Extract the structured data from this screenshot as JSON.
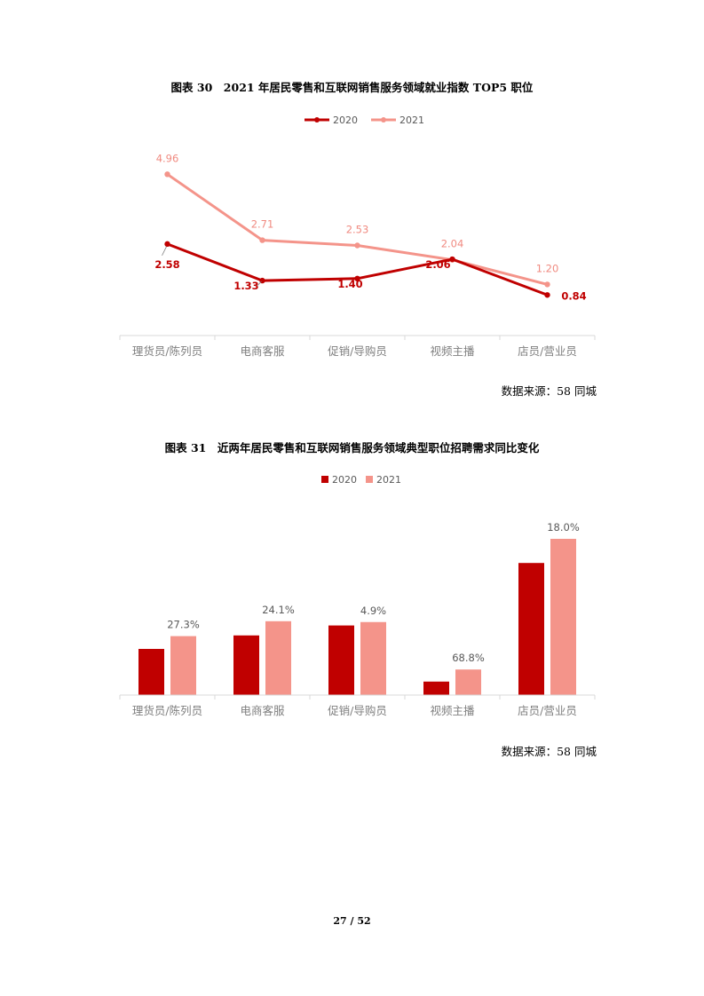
{
  "figure30": {
    "caption": "图表 30　2021 年居民零售和互联网销售服务领域就业指数 TOP5 职位",
    "source": "数据来源：58 同城"
  },
  "figure31": {
    "caption": "图表 31　近两年居民零售和互联网销售服务领域典型职位招聘需求同比变化",
    "source": "数据来源：58 同城"
  },
  "page_number": "27 / 52",
  "chart_data": [
    {
      "type": "line",
      "categories": [
        "理货员/陈列员",
        "电商客服",
        "促销/导购员",
        "视频主播",
        "店员/营业员"
      ],
      "series": [
        {
          "name": "2020",
          "values": [
            2.58,
            1.33,
            1.4,
            2.06,
            0.84
          ],
          "labels": [
            "2.58",
            "1.33",
            "1.40",
            "2.06",
            "0.84"
          ],
          "color": "#C00000"
        },
        {
          "name": "2021",
          "values": [
            4.96,
            2.71,
            2.53,
            2.04,
            1.2
          ],
          "labels": [
            "4.96",
            "2.71",
            "2.53",
            "2.04",
            "1.20"
          ],
          "color": "#F4948A"
        }
      ],
      "legend": "top-center",
      "grid": false
    },
    {
      "type": "bar",
      "categories": [
        "理货员/陈列员",
        "电商客服",
        "促销/导购员",
        "视频主播",
        "店员/营业员"
      ],
      "series": [
        {
          "name": "2020",
          "values": [
            0.325,
            0.42,
            0.49,
            0.095,
            0.93
          ],
          "color": "#C00000"
        },
        {
          "name": "2021",
          "values": [
            0.415,
            0.52,
            0.514,
            0.18,
            1.1
          ],
          "labels": [
            "27.3%",
            "24.1%",
            "4.9%",
            "68.8%",
            "18.0%"
          ],
          "color": "#F4948A"
        }
      ],
      "legend": "top-center",
      "grid": false
    }
  ]
}
